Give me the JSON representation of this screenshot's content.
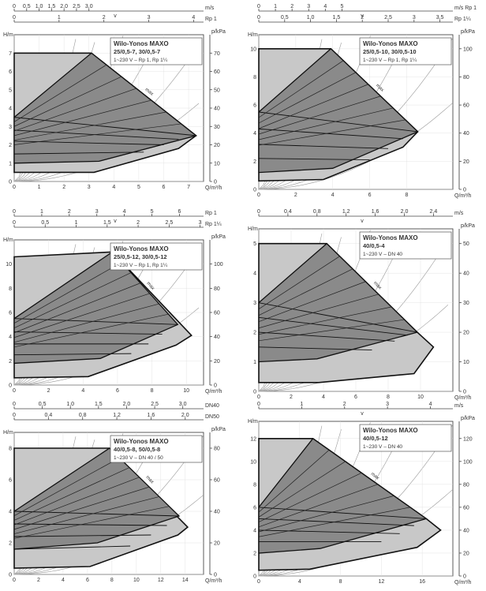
{
  "charts": [
    {
      "title": "Wilo-Yonos MAXO",
      "models": "25/0,5-7, 30/0,5-7",
      "spec": "1~230 V – Rp 1, Rp 1¼",
      "max_label": "max",
      "ylabel_left": "H/m",
      "ylabel_right": "p/kPa",
      "xlabel": "Q/m³/h",
      "top_axes": [
        {
          "label": "v",
          "unit": "m/s",
          "ticks": [
            {
              "v": 0,
              "label": "0"
            },
            {
              "v": 0.5,
              "label": "0,5"
            },
            {
              "v": 1.0,
              "label": "1,0"
            },
            {
              "v": 1.5,
              "label": "1,5"
            },
            {
              "v": 2.0,
              "label": "2,0"
            },
            {
              "v": 2.5,
              "label": "2,5"
            },
            {
              "v": 3.0,
              "label": "3,0"
            }
          ]
        },
        {
          "label": "",
          "unit": "Rp 1",
          "ticks": [
            {
              "v": 0,
              "label": "0"
            },
            {
              "v": 1.8,
              "label": "1"
            },
            {
              "v": 3.6,
              "label": "2"
            },
            {
              "v": 5.4,
              "label": "3"
            },
            {
              "v": 7.2,
              "label": "4"
            }
          ]
        }
      ],
      "xlim": [
        0,
        7.6
      ],
      "ylim": [
        0,
        8
      ],
      "plim": [
        0,
        80
      ],
      "xticks": [
        0,
        1,
        2,
        3,
        4,
        5,
        6,
        7
      ],
      "yticks": [
        0,
        1,
        2,
        3,
        4,
        5,
        6,
        7
      ],
      "pticks": [
        0,
        10,
        20,
        30,
        40,
        50,
        60,
        70
      ],
      "envelope_max": [
        [
          0,
          7
        ],
        [
          3.1,
          7
        ],
        [
          7.3,
          2.5
        ],
        [
          6.6,
          1.8
        ],
        [
          3.2,
          0.5
        ],
        [
          0,
          0.5
        ]
      ],
      "dark_region": [
        [
          0,
          3.5
        ],
        [
          3.1,
          7
        ],
        [
          7.3,
          2.5
        ],
        [
          3.4,
          1.1
        ],
        [
          0,
          1.0
        ]
      ],
      "constant_curves": [
        [
          [
            0,
            3.5
          ],
          [
            7.3,
            2.5
          ]
        ],
        [
          [
            0,
            2.8
          ],
          [
            6.6,
            2.3
          ]
        ],
        [
          [
            0,
            2.2
          ],
          [
            6.0,
            2.0
          ]
        ],
        [
          [
            0,
            1.5
          ],
          [
            5.2,
            1.6
          ]
        ]
      ]
    },
    {
      "title": "Wilo-Yonos MAXO",
      "models": "25/0,5-10, 30/0,5-10",
      "spec": "1~230 V – Rp 1, Rp 1¼",
      "max_label": "max",
      "ylabel_left": "H/m",
      "ylabel_right": "p/kPa",
      "xlabel": "Q/m³/h",
      "top_axes": [
        {
          "label": "v",
          "unit": "m/s Rp 1",
          "ticks": [
            {
              "v": 0,
              "label": "0"
            },
            {
              "v": 0.9,
              "label": "1"
            },
            {
              "v": 1.8,
              "label": "2"
            },
            {
              "v": 2.7,
              "label": "3"
            },
            {
              "v": 3.6,
              "label": "4"
            },
            {
              "v": 4.5,
              "label": "5"
            }
          ]
        },
        {
          "label": "",
          "unit": "Rp 1¼",
          "ticks": [
            {
              "v": 0,
              "label": "0"
            },
            {
              "v": 1.4,
              "label": "0,5"
            },
            {
              "v": 2.8,
              "label": "1,0"
            },
            {
              "v": 4.2,
              "label": "1,5"
            },
            {
              "v": 5.6,
              "label": "2"
            },
            {
              "v": 7.0,
              "label": "2,5"
            },
            {
              "v": 8.4,
              "label": "3"
            },
            {
              "v": 9.8,
              "label": "3,5"
            }
          ]
        }
      ],
      "xlim": [
        0,
        10.5
      ],
      "ylim": [
        0,
        11
      ],
      "plim": [
        0,
        110
      ],
      "xticks": [
        0,
        2,
        4,
        6,
        8
      ],
      "yticks": [
        0,
        2,
        4,
        6,
        8,
        10
      ],
      "pticks": [
        0,
        20,
        40,
        60,
        80,
        100
      ],
      "envelope_max": [
        [
          0,
          10
        ],
        [
          3.9,
          10
        ],
        [
          8.6,
          4.1
        ],
        [
          7.8,
          3.0
        ],
        [
          3.5,
          0.7
        ],
        [
          0,
          0.6
        ]
      ],
      "dark_region": [
        [
          0,
          5.5
        ],
        [
          3.9,
          10
        ],
        [
          8.6,
          4.1
        ],
        [
          4.0,
          1.5
        ],
        [
          0,
          1.2
        ]
      ],
      "constant_curves": [
        [
          [
            0,
            5.5
          ],
          [
            8.6,
            4.1
          ]
        ],
        [
          [
            0,
            4.3
          ],
          [
            7.8,
            3.6
          ]
        ],
        [
          [
            0,
            3.2
          ],
          [
            7.0,
            2.9
          ]
        ],
        [
          [
            0,
            2.2
          ],
          [
            6.0,
            2.1
          ]
        ]
      ]
    },
    {
      "title": "Wilo-Yonos MAXO",
      "models": "25/0,5-12, 30/0,5-12",
      "spec": "1~230 V – Rp 1, Rp 1¼",
      "max_label": "max",
      "ylabel_left": "H/m",
      "ylabel_right": "p/kPa",
      "xlabel": "Q/m³/h",
      "top_axes": [
        {
          "label": "v",
          "unit": "Rp 1",
          "ticks": [
            {
              "v": 0,
              "label": "0"
            },
            {
              "v": 1.6,
              "label": "1"
            },
            {
              "v": 3.2,
              "label": "2"
            },
            {
              "v": 4.8,
              "label": "3"
            },
            {
              "v": 6.4,
              "label": "4"
            },
            {
              "v": 8.0,
              "label": "5"
            },
            {
              "v": 9.6,
              "label": "6"
            }
          ]
        },
        {
          "label": "",
          "unit": "Rp 1¼",
          "ticks": [
            {
              "v": 0,
              "label": "0"
            },
            {
              "v": 1.8,
              "label": "0,5"
            },
            {
              "v": 3.6,
              "label": "1"
            },
            {
              "v": 5.4,
              "label": "1,5"
            },
            {
              "v": 7.2,
              "label": "2"
            },
            {
              "v": 9.0,
              "label": "2,5"
            },
            {
              "v": 10.8,
              "label": "3"
            }
          ]
        }
      ],
      "xlim": [
        0,
        11
      ],
      "ylim": [
        0,
        12
      ],
      "plim": [
        0,
        120
      ],
      "xticks": [
        0,
        2,
        4,
        6,
        8,
        10
      ],
      "yticks": [
        0,
        2,
        4,
        6,
        8,
        10
      ],
      "pticks": [
        0,
        20,
        40,
        60,
        80,
        100
      ],
      "envelope_max": [
        [
          0,
          10.6
        ],
        [
          5.7,
          11
        ],
        [
          10.3,
          4.1
        ],
        [
          9.4,
          3.3
        ],
        [
          4.3,
          0.7
        ],
        [
          0,
          0.6
        ]
      ],
      "dark_region": [
        [
          0,
          5.5
        ],
        [
          5.7,
          11
        ],
        [
          9.5,
          5.0
        ],
        [
          5.0,
          2.2
        ],
        [
          0,
          1.8
        ]
      ],
      "constant_curves": [
        [
          [
            0,
            5.5
          ],
          [
            9.5,
            5.0
          ]
        ],
        [
          [
            0,
            4.4
          ],
          [
            8.6,
            4.2
          ]
        ],
        [
          [
            0,
            3.4
          ],
          [
            7.8,
            3.4
          ]
        ],
        [
          [
            0,
            2.5
          ],
          [
            6.8,
            2.6
          ]
        ]
      ]
    },
    {
      "title": "Wilo-Yonos MAXO",
      "models": "40/0,5-4",
      "spec": "1~230 V – DN 40",
      "max_label": "max",
      "ylabel_left": "H/m",
      "ylabel_right": "p/kPa",
      "xlabel": "Q/m³/h",
      "top_axes": [
        {
          "label": "v",
          "unit": "m/s",
          "ticks": [
            {
              "v": 0,
              "label": "0"
            },
            {
              "v": 1.8,
              "label": "0,4"
            },
            {
              "v": 3.6,
              "label": "0,8"
            },
            {
              "v": 5.4,
              "label": "1,2"
            },
            {
              "v": 7.2,
              "label": "1,6"
            },
            {
              "v": 9.0,
              "label": "2,0"
            },
            {
              "v": 10.8,
              "label": "2,4"
            }
          ]
        }
      ],
      "xlim": [
        0,
        12
      ],
      "ylim": [
        0,
        5.5
      ],
      "plim": [
        0,
        55
      ],
      "xticks": [
        0,
        2,
        4,
        6,
        8,
        10
      ],
      "yticks": [
        0,
        1,
        2,
        3,
        4,
        5
      ],
      "pticks": [
        0,
        10,
        20,
        30,
        40,
        50
      ],
      "envelope_max": [
        [
          0,
          5
        ],
        [
          4.2,
          5
        ],
        [
          9.8,
          2.0
        ],
        [
          10.8,
          1.5
        ],
        [
          9.6,
          0.6
        ],
        [
          3.7,
          0.3
        ],
        [
          0,
          0.3
        ]
      ],
      "dark_region": [
        [
          0,
          3.0
        ],
        [
          4.2,
          5
        ],
        [
          9.8,
          2.0
        ],
        [
          3.6,
          1.1
        ],
        [
          0,
          1.0
        ]
      ],
      "constant_curves": [
        [
          [
            0,
            3.0
          ],
          [
            9.8,
            2.0
          ]
        ],
        [
          [
            0,
            2.5
          ],
          [
            9.2,
            1.9
          ]
        ],
        [
          [
            0,
            2.0
          ],
          [
            8.4,
            1.7
          ]
        ],
        [
          [
            0,
            1.5
          ],
          [
            7.0,
            1.4
          ]
        ]
      ]
    },
    {
      "title": "Wilo-Yonos MAXO",
      "models": "40/0,5-8, 50/0,5-8",
      "spec": "1~230 V – DN 40 / 50",
      "max_label": "max",
      "ylabel_left": "H/m",
      "ylabel_right": "p/kPa",
      "xlabel": "Q/m³/h",
      "top_axes": [
        {
          "label": "",
          "unit": "DN40",
          "ticks": [
            {
              "v": 0,
              "label": "0"
            },
            {
              "v": 2.3,
              "label": "0,5"
            },
            {
              "v": 4.6,
              "label": "1,0"
            },
            {
              "v": 6.9,
              "label": "1,5"
            },
            {
              "v": 9.2,
              "label": "2,0"
            },
            {
              "v": 11.5,
              "label": "2,5"
            },
            {
              "v": 13.8,
              "label": "3,0"
            }
          ]
        },
        {
          "label": "",
          "unit": "DN50",
          "ticks": [
            {
              "v": 0,
              "label": "0"
            },
            {
              "v": 2.8,
              "label": "0,4"
            },
            {
              "v": 5.6,
              "label": "0,8"
            },
            {
              "v": 8.4,
              "label": "1,2"
            },
            {
              "v": 11.2,
              "label": "1,6"
            },
            {
              "v": 14.0,
              "label": "2,0"
            }
          ]
        }
      ],
      "xlim": [
        0,
        15.5
      ],
      "ylim": [
        0,
        9
      ],
      "plim": [
        0,
        90
      ],
      "xticks": [
        0,
        2,
        4,
        6,
        8,
        10,
        12,
        14
      ],
      "yticks": [
        0,
        2,
        4,
        6,
        8
      ],
      "pticks": [
        0,
        20,
        40,
        60,
        80
      ],
      "envelope_max": [
        [
          0,
          8
        ],
        [
          7.8,
          8
        ],
        [
          14.2,
          3.0
        ],
        [
          13.4,
          2.5
        ],
        [
          6.2,
          0.5
        ],
        [
          0,
          0.4
        ]
      ],
      "dark_region": [
        [
          0,
          4.0
        ],
        [
          7.8,
          8
        ],
        [
          13.5,
          3.7
        ],
        [
          6.8,
          2.0
        ],
        [
          0,
          1.6
        ]
      ],
      "constant_curves": [
        [
          [
            0,
            4.0
          ],
          [
            13.5,
            3.7
          ]
        ],
        [
          [
            0,
            3.2
          ],
          [
            12.5,
            3.1
          ]
        ],
        [
          [
            0,
            2.4
          ],
          [
            11.2,
            2.5
          ]
        ],
        [
          [
            0,
            1.6
          ],
          [
            9.5,
            1.8
          ]
        ]
      ]
    },
    {
      "title": "Wilo-Yonos MAXO",
      "models": "40/0,5-12",
      "spec": "1~230 V – DN 40",
      "max_label": "max",
      "ylabel_left": "H/m",
      "ylabel_right": "p/kPa",
      "xlabel": "Q/m³/h",
      "top_axes": [
        {
          "label": "v",
          "unit": "m/s",
          "ticks": [
            {
              "v": 0,
              "label": "0"
            },
            {
              "v": 4.2,
              "label": "1"
            },
            {
              "v": 8.4,
              "label": "2"
            },
            {
              "v": 12.6,
              "label": "3"
            },
            {
              "v": 16.8,
              "label": "4"
            }
          ]
        }
      ],
      "xlim": [
        0,
        19
      ],
      "ylim": [
        0,
        13.5
      ],
      "plim": [
        0,
        135
      ],
      "xticks": [
        0,
        4,
        8,
        12,
        16
      ],
      "yticks": [
        0,
        2,
        4,
        6,
        8,
        10,
        12
      ],
      "pticks": [
        0,
        20,
        40,
        60,
        80,
        100,
        120
      ],
      "envelope_max": [
        [
          0,
          12
        ],
        [
          5.3,
          12
        ],
        [
          16.4,
          5.0
        ],
        [
          17.8,
          4.0
        ],
        [
          15.5,
          2.5
        ],
        [
          5.0,
          0.6
        ],
        [
          0,
          0.5
        ]
      ],
      "dark_region": [
        [
          0,
          6.0
        ],
        [
          5.3,
          12
        ],
        [
          16.4,
          5.0
        ],
        [
          6.0,
          2.4
        ],
        [
          0,
          2.0
        ]
      ],
      "constant_curves": [
        [
          [
            0,
            6.0
          ],
          [
            16.4,
            5.0
          ]
        ],
        [
          [
            0,
            5.0
          ],
          [
            15.2,
            4.4
          ]
        ],
        [
          [
            0,
            4.0
          ],
          [
            13.8,
            3.7
          ]
        ],
        [
          [
            0,
            3.0
          ],
          [
            12.0,
            3.0
          ]
        ]
      ]
    }
  ]
}
